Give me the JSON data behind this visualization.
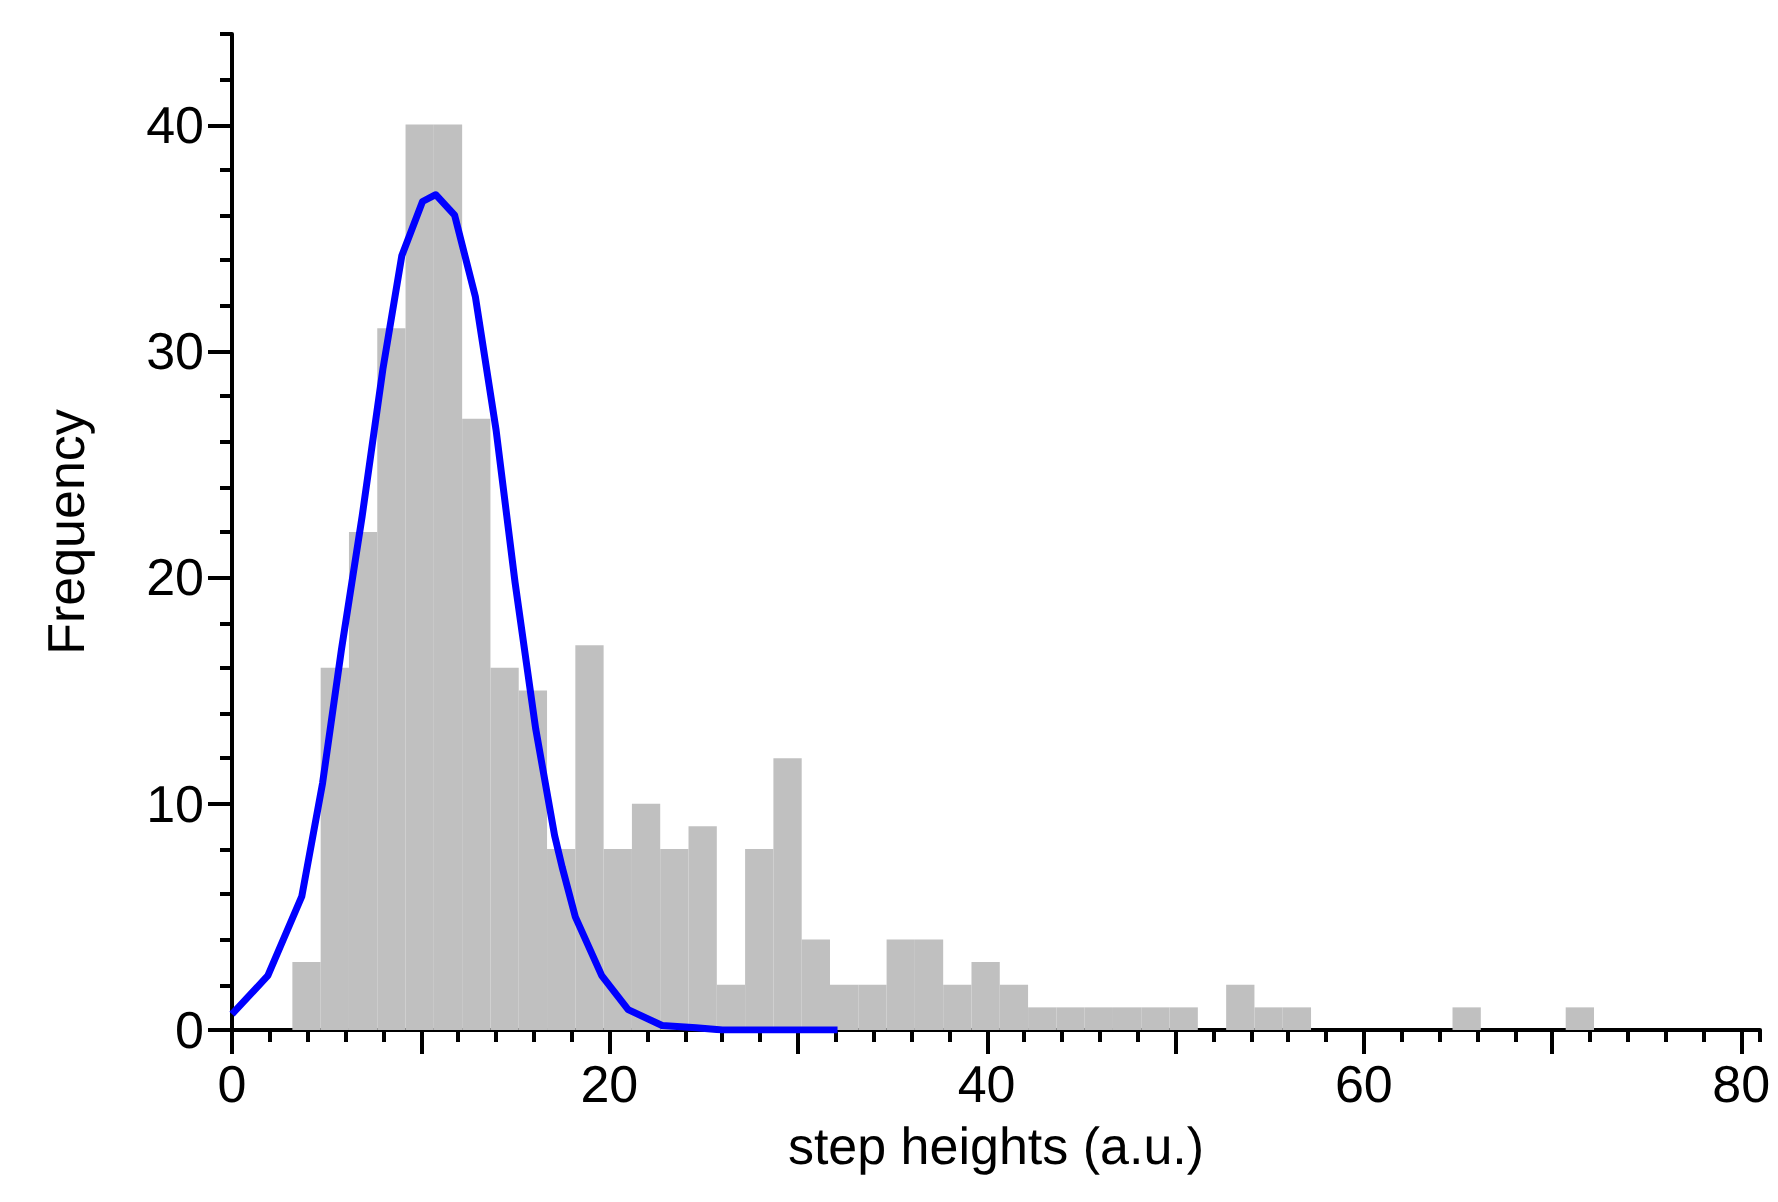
{
  "chart_data": {
    "type": "histogram",
    "xlabel": "step heights (a.u.)",
    "ylabel": "Frequency",
    "xlim": [
      0,
      81
    ],
    "ylim": [
      0,
      44
    ],
    "xticks": [
      0,
      {
        "value": 10,
        "label": null
      },
      20,
      {
        "value": 30,
        "label": null
      },
      40,
      {
        "value": 50,
        "label": null
      },
      60,
      {
        "value": 70,
        "label": null
      },
      80
    ],
    "yticks": [
      0,
      10,
      20,
      30,
      40
    ],
    "grid": false,
    "series": [
      {
        "color": "#c0c0c0",
        "bins": [
          3.2,
          4.7,
          6.2,
          7.7,
          9.2,
          10.7,
          12.2,
          13.7,
          15.2,
          16.7,
          18.2,
          19.7,
          21.2,
          22.7,
          24.2,
          25.7,
          27.2,
          28.7,
          30.2,
          31.7,
          33.2,
          34.7,
          36.2,
          37.7,
          39.2,
          40.7,
          42.2,
          43.7,
          45.2,
          46.7,
          48.2,
          49.7,
          51.2,
          52.7,
          54.2,
          55.7,
          57.2,
          58.7,
          60.2,
          61.7,
          63.2,
          64.7,
          66.2,
          67.7,
          69.2,
          70.7,
          72.2
        ],
        "values": [
          3,
          16,
          22,
          31,
          40,
          40,
          27,
          16,
          15,
          8,
          17,
          8,
          10,
          8,
          9,
          2,
          8,
          12,
          4,
          2,
          2,
          4,
          4,
          2,
          3,
          2,
          1,
          1,
          1,
          1,
          1,
          1,
          0,
          2,
          1,
          1,
          0,
          0,
          0,
          0,
          0,
          1,
          0,
          0,
          0,
          1
        ]
      },
      {
        "type": "line",
        "color": "#0000ff",
        "marker": "none",
        "x": [
          0,
          1.9,
          3.7,
          4.8,
          5.8,
          6.9,
          8.0,
          9.0,
          10.1,
          10.8,
          11.8,
          12.9,
          14.0,
          15.0,
          16.1,
          17.1,
          17.5,
          18.2,
          19.6,
          21.0,
          22.8,
          24.6,
          26.0,
          32.1
        ],
        "values": [
          0.7,
          2.4,
          5.9,
          10.9,
          16.8,
          22.7,
          29.2,
          34.2,
          36.6,
          36.9,
          36.0,
          32.4,
          26.5,
          19.8,
          13.3,
          8.6,
          7.2,
          5.0,
          2.4,
          0.9,
          0.2,
          0.1,
          0,
          0
        ]
      }
    ]
  }
}
